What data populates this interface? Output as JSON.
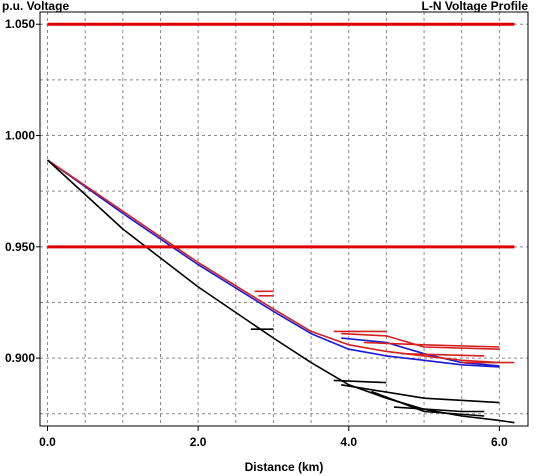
{
  "chart_data": {
    "type": "line",
    "title": "L-N Voltage Profile",
    "ylabel": "p.u. Voltage",
    "xlabel": "Distance (km)",
    "xlim": [
      -0.1,
      6.38
    ],
    "ylim": [
      0.8695,
      1.0555
    ],
    "xticks": [
      0.0,
      2.0,
      4.0,
      6.0
    ],
    "xtick_labels": [
      "0.0",
      "2.0",
      "4.0",
      "6.0"
    ],
    "yticks": [
      0.9,
      0.95,
      1.0,
      1.05
    ],
    "ytick_labels": [
      "0.900",
      "0.950",
      "1.000",
      "1.050"
    ],
    "grid": true,
    "limit_color": "#e00000",
    "colors": {
      "red": "#d42020",
      "blue": "#1a1ad0",
      "black": "#000000"
    },
    "limits": [
      {
        "y": 1.05,
        "x": [
          0.0,
          6.2
        ]
      },
      {
        "y": 0.95,
        "x": [
          0.0,
          6.2
        ]
      }
    ],
    "series": [
      {
        "color": "blue",
        "points": [
          [
            0.0,
            0.989
          ],
          [
            1.0,
            0.965
          ],
          [
            2.0,
            0.942
          ],
          [
            3.0,
            0.921
          ],
          [
            3.5,
            0.911
          ],
          [
            4.0,
            0.904
          ],
          [
            4.5,
            0.901
          ],
          [
            5.0,
            0.899
          ],
          [
            5.5,
            0.897
          ],
          [
            6.0,
            0.896
          ]
        ]
      },
      {
        "color": "blue",
        "points": [
          [
            3.9,
            0.909
          ],
          [
            4.5,
            0.907
          ],
          [
            5.0,
            0.902
          ],
          [
            5.5,
            0.898
          ],
          [
            6.0,
            0.8965
          ]
        ]
      },
      {
        "color": "red",
        "points": [
          [
            0.0,
            0.989
          ],
          [
            1.0,
            0.966
          ],
          [
            2.0,
            0.943
          ],
          [
            3.0,
            0.922
          ],
          [
            3.5,
            0.912
          ],
          [
            4.0,
            0.906
          ],
          [
            4.5,
            0.903
          ],
          [
            5.0,
            0.901
          ],
          [
            5.5,
            0.899
          ],
          [
            6.0,
            0.898
          ]
        ]
      },
      {
        "color": "red",
        "points": [
          [
            3.8,
            0.912
          ],
          [
            4.5,
            0.912
          ]
        ]
      },
      {
        "color": "red",
        "points": [
          [
            3.9,
            0.911
          ],
          [
            4.5,
            0.91
          ],
          [
            5.0,
            0.905
          ],
          [
            6.0,
            0.904
          ]
        ]
      },
      {
        "color": "red",
        "points": [
          [
            4.2,
            0.907
          ],
          [
            5.0,
            0.906
          ],
          [
            6.0,
            0.905
          ]
        ]
      },
      {
        "color": "red",
        "points": [
          [
            4.7,
            0.902
          ],
          [
            5.8,
            0.901
          ]
        ]
      },
      {
        "color": "red",
        "points": [
          [
            5.5,
            0.898
          ],
          [
            6.2,
            0.898
          ]
        ]
      },
      {
        "color": "red",
        "points": [
          [
            2.75,
            0.93
          ],
          [
            3.0,
            0.93
          ]
        ]
      },
      {
        "color": "red",
        "points": [
          [
            2.8,
            0.928
          ],
          [
            3.0,
            0.928
          ]
        ]
      },
      {
        "color": "black",
        "points": [
          [
            0.0,
            0.989
          ],
          [
            1.0,
            0.958
          ],
          [
            2.0,
            0.932
          ],
          [
            3.0,
            0.909
          ],
          [
            3.5,
            0.898
          ],
          [
            4.0,
            0.888
          ],
          [
            4.5,
            0.882
          ],
          [
            5.0,
            0.877
          ],
          [
            5.5,
            0.874
          ],
          [
            6.0,
            0.872
          ],
          [
            6.2,
            0.871
          ]
        ]
      },
      {
        "color": "black",
        "points": [
          [
            3.8,
            0.89
          ],
          [
            4.5,
            0.889
          ]
        ]
      },
      {
        "color": "black",
        "points": [
          [
            3.9,
            0.888
          ],
          [
            5.0,
            0.882
          ],
          [
            6.0,
            0.88
          ]
        ]
      },
      {
        "color": "black",
        "points": [
          [
            4.3,
            0.885
          ],
          [
            5.0,
            0.876
          ],
          [
            5.8,
            0.874
          ]
        ]
      },
      {
        "color": "black",
        "points": [
          [
            4.6,
            0.878
          ],
          [
            5.5,
            0.876
          ],
          [
            5.8,
            0.876
          ]
        ]
      },
      {
        "color": "black",
        "points": [
          [
            2.7,
            0.913
          ],
          [
            3.0,
            0.913
          ]
        ]
      }
    ]
  }
}
